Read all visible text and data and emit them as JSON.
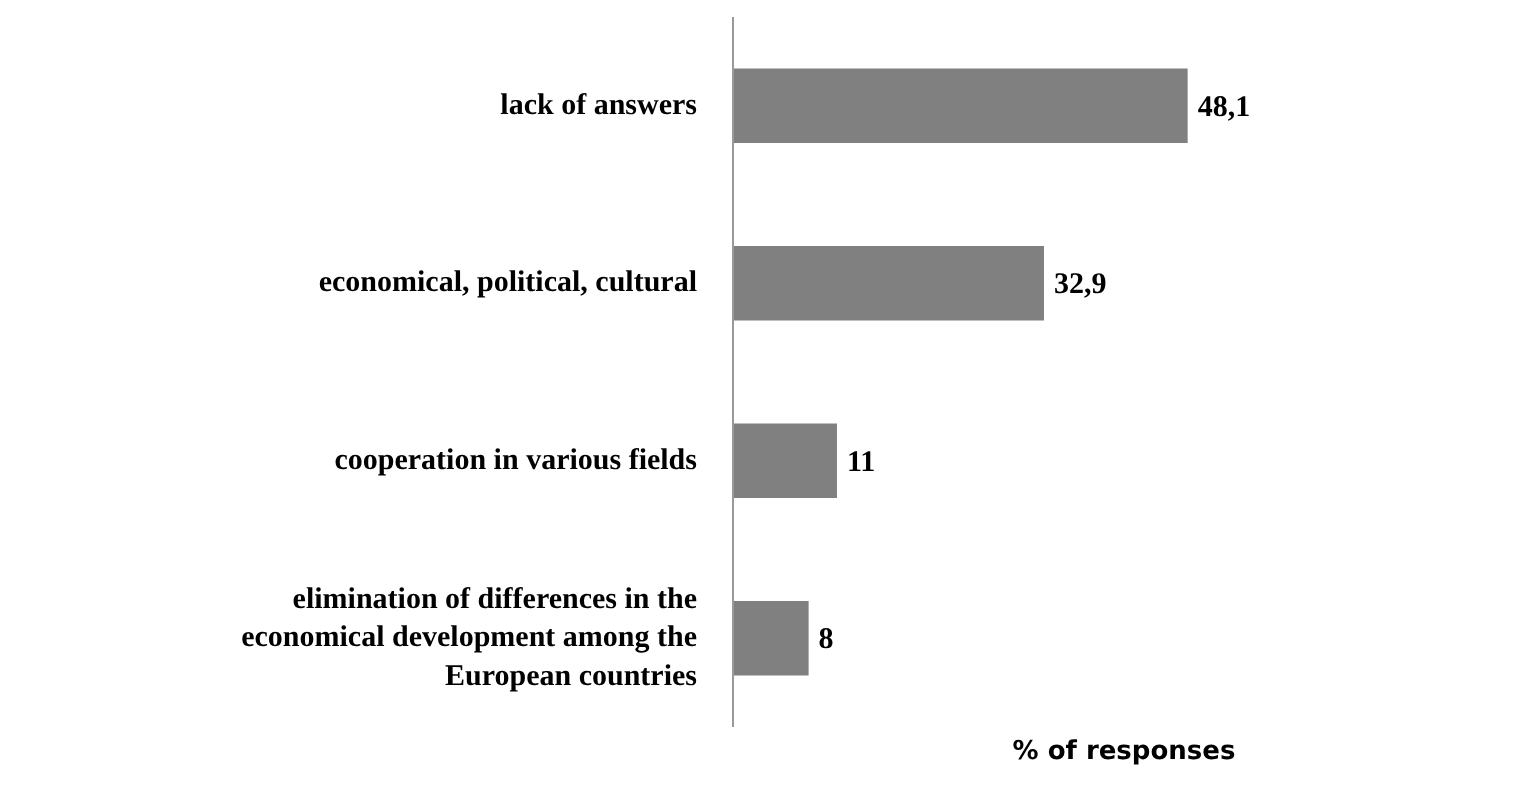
{
  "chart_data": {
    "type": "bar",
    "orientation": "horizontal",
    "xlabel": "% of responses",
    "categories": [
      "lack of answers",
      "economical, political, cultural",
      "cooperation in various fields",
      "elimination of differences in the economical development among the European countries"
    ],
    "values": [
      48.1,
      32.9,
      11,
      8
    ],
    "value_labels": [
      "48,1",
      "32,9",
      "11",
      "8"
    ],
    "color": "#808080",
    "grid": false
  }
}
